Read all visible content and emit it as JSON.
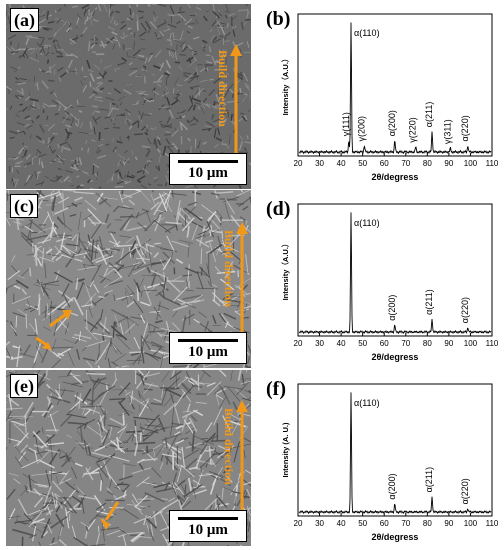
{
  "panels": {
    "a": {
      "label": "(a)",
      "scale": "10 μm",
      "build": "Build direction"
    },
    "c": {
      "label": "(c)",
      "scale": "10 μm",
      "build": "Build direction"
    },
    "e": {
      "label": "(e)",
      "scale": "10 μm",
      "build": "Build direction"
    }
  },
  "colors": {
    "accent": "#f29818",
    "sem_base": "#6b6b6b",
    "axis": "#000000"
  },
  "chart_data": [
    {
      "panel": "(b)",
      "type": "line",
      "xlabel": "2θ/degress",
      "ylabel": "Intensity（A.U.）",
      "xlim": [
        20,
        110
      ],
      "xticks": [
        20,
        30,
        40,
        50,
        60,
        70,
        80,
        90,
        100,
        110
      ],
      "peaks": [
        {
          "x": 43.6,
          "h": 0.09,
          "label": "γ(111)"
        },
        {
          "x": 44.6,
          "h": 1.0,
          "label": "α(110)"
        },
        {
          "x": 50.8,
          "h": 0.05,
          "label": "γ(200)"
        },
        {
          "x": 64.9,
          "h": 0.09,
          "label": "α(200)"
        },
        {
          "x": 74.6,
          "h": 0.04,
          "label": "γ(220)"
        },
        {
          "x": 82.2,
          "h": 0.16,
          "label": "α(211)"
        },
        {
          "x": 90.7,
          "h": 0.03,
          "label": "γ(311)"
        },
        {
          "x": 98.8,
          "h": 0.05,
          "label": "α(220)"
        }
      ]
    },
    {
      "panel": "(d)",
      "type": "line",
      "xlabel": "2θ/degress",
      "ylabel": "Intensity（A.U.）",
      "xlim": [
        20,
        110
      ],
      "xticks": [
        20,
        30,
        40,
        50,
        60,
        70,
        80,
        90,
        100,
        110
      ],
      "peaks": [
        {
          "x": 44.6,
          "h": 1.0,
          "label": "α(110)"
        },
        {
          "x": 64.9,
          "h": 0.06,
          "label": "α(200)"
        },
        {
          "x": 82.2,
          "h": 0.11,
          "label": "α(211)"
        },
        {
          "x": 98.8,
          "h": 0.04,
          "label": "α(220)"
        }
      ]
    },
    {
      "panel": "(f)",
      "type": "line",
      "xlabel": "2θ/degress",
      "ylabel": "Intensity (A. U.)",
      "xlim": [
        20,
        110
      ],
      "xticks": [
        20,
        30,
        40,
        50,
        60,
        70,
        80,
        90,
        100,
        110
      ],
      "peaks": [
        {
          "x": 44.6,
          "h": 1.0,
          "label": "α(110)"
        },
        {
          "x": 64.9,
          "h": 0.07,
          "label": "α(200)"
        },
        {
          "x": 82.2,
          "h": 0.13,
          "label": "α(211)"
        },
        {
          "x": 98.8,
          "h": 0.03,
          "label": "α(220)"
        }
      ]
    }
  ]
}
